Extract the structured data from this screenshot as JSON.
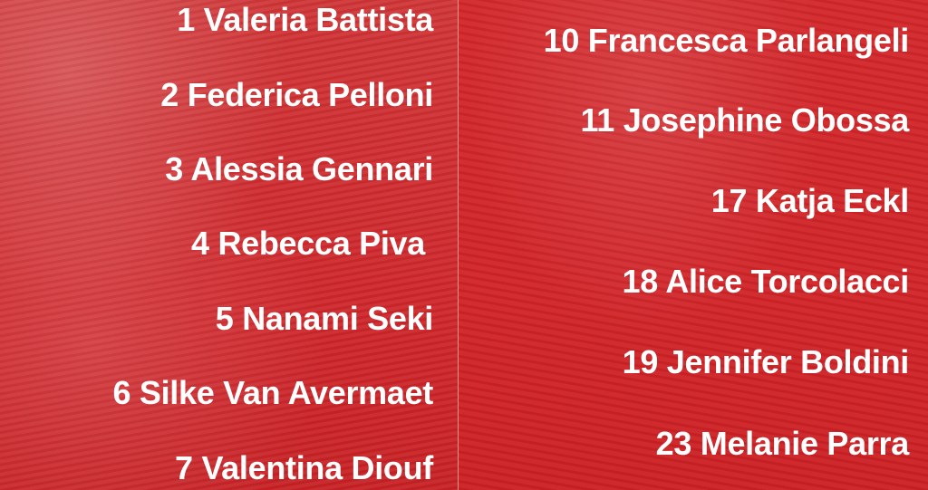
{
  "left_column": [
    "1 Valeria Battista",
    "2 Federica Pelloni",
    "3 Alessia Gennari",
    "4 Rebecca Piva",
    "5 Nanami Seki",
    "6 Silke Van Avermaet",
    "7 Valentina Diouf"
  ],
  "right_column": [
    "10 Francesca Parlangeli",
    "11 Josephine Obossa",
    "17 Katja Eckl",
    "18 Alice Torcolacci",
    "19 Jennifer Boldini",
    "23 Melanie Parra"
  ],
  "colors": {
    "background": "#d42a2d",
    "text": "#ffffff"
  }
}
